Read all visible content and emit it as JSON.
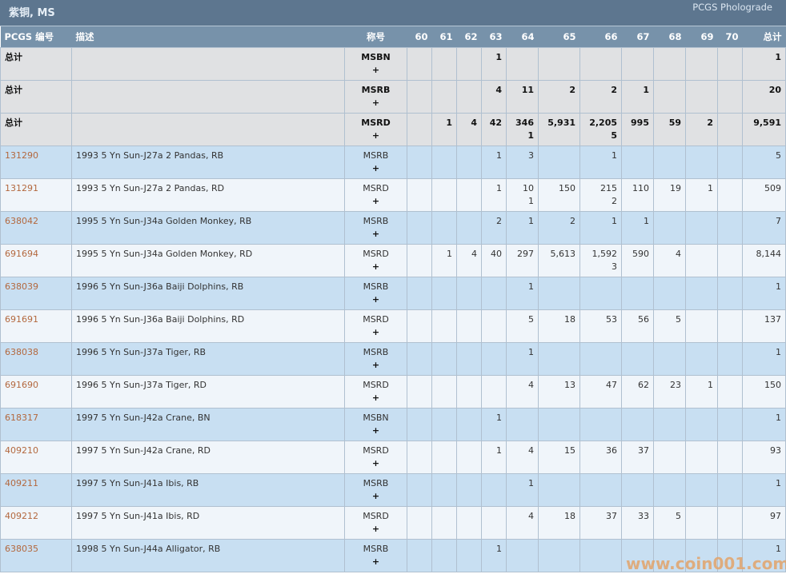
{
  "header": {
    "title": "紫铜, MS",
    "brand": "PCGS Pholograde"
  },
  "columns": {
    "pcgs": "PCGS 编号",
    "desc": "描述",
    "designation": "称号",
    "grades": [
      "60",
      "61",
      "62",
      "63",
      "64",
      "65",
      "66",
      "67",
      "68",
      "69",
      "70"
    ],
    "total": "总计"
  },
  "plus_symbol": "+",
  "totals": [
    {
      "label": "总计",
      "designation": "MSBN",
      "grades": [
        "",
        "",
        "",
        "1",
        "",
        "",
        "",
        "",
        "",
        "",
        ""
      ],
      "plus": [
        "",
        "",
        "",
        "",
        "",
        "",
        "",
        "",
        "",
        "",
        ""
      ],
      "total": "1"
    },
    {
      "label": "总计",
      "designation": "MSRB",
      "grades": [
        "",
        "",
        "",
        "4",
        "11",
        "2",
        "2",
        "1",
        "",
        "",
        ""
      ],
      "plus": [
        "",
        "",
        "",
        "",
        "",
        "",
        "",
        "",
        "",
        "",
        ""
      ],
      "total": "20"
    },
    {
      "label": "总计",
      "designation": "MSRD",
      "grades": [
        "",
        "1",
        "4",
        "42",
        "346",
        "5,931",
        "2,205",
        "995",
        "59",
        "2",
        ""
      ],
      "plus": [
        "",
        "",
        "",
        "",
        "1",
        "",
        "5",
        "",
        "",
        "",
        ""
      ],
      "total": "9,591"
    }
  ],
  "rows": [
    {
      "pcgs": "131290",
      "desc": "1993 5 Yn Sun-J27a 2 Pandas, RB",
      "designation": "MSRB",
      "grades": [
        "",
        "",
        "",
        "1",
        "3",
        "",
        "1",
        "",
        "",
        "",
        ""
      ],
      "plus": [
        "",
        "",
        "",
        "",
        "",
        "",
        "",
        "",
        "",
        "",
        ""
      ],
      "total": "5"
    },
    {
      "pcgs": "131291",
      "desc": "1993 5 Yn Sun-J27a 2 Pandas, RD",
      "designation": "MSRD",
      "grades": [
        "",
        "",
        "",
        "1",
        "10",
        "150",
        "215",
        "110",
        "19",
        "1",
        ""
      ],
      "plus": [
        "",
        "",
        "",
        "",
        "1",
        "",
        "2",
        "",
        "",
        "",
        ""
      ],
      "total": "509"
    },
    {
      "pcgs": "638042",
      "desc": "1995 5 Yn Sun-J34a Golden Monkey, RB",
      "designation": "MSRB",
      "grades": [
        "",
        "",
        "",
        "2",
        "1",
        "2",
        "1",
        "1",
        "",
        "",
        ""
      ],
      "plus": [
        "",
        "",
        "",
        "",
        "",
        "",
        "",
        "",
        "",
        "",
        ""
      ],
      "total": "7"
    },
    {
      "pcgs": "691694",
      "desc": "1995 5 Yn Sun-J34a Golden Monkey, RD",
      "designation": "MSRD",
      "grades": [
        "",
        "1",
        "4",
        "40",
        "297",
        "5,613",
        "1,592",
        "590",
        "4",
        "",
        ""
      ],
      "plus": [
        "",
        "",
        "",
        "",
        "",
        "",
        "3",
        "",
        "",
        "",
        ""
      ],
      "total": "8,144"
    },
    {
      "pcgs": "638039",
      "desc": "1996 5 Yn Sun-J36a Baiji Dolphins, RB",
      "designation": "MSRB",
      "grades": [
        "",
        "",
        "",
        "",
        "1",
        "",
        "",
        "",
        "",
        "",
        ""
      ],
      "plus": [
        "",
        "",
        "",
        "",
        "",
        "",
        "",
        "",
        "",
        "",
        ""
      ],
      "total": "1"
    },
    {
      "pcgs": "691691",
      "desc": "1996 5 Yn Sun-J36a Baiji Dolphins, RD",
      "designation": "MSRD",
      "grades": [
        "",
        "",
        "",
        "",
        "5",
        "18",
        "53",
        "56",
        "5",
        "",
        ""
      ],
      "plus": [
        "",
        "",
        "",
        "",
        "",
        "",
        "",
        "",
        "",
        "",
        ""
      ],
      "total": "137"
    },
    {
      "pcgs": "638038",
      "desc": "1996 5 Yn Sun-J37a Tiger, RB",
      "designation": "MSRB",
      "grades": [
        "",
        "",
        "",
        "",
        "1",
        "",
        "",
        "",
        "",
        "",
        ""
      ],
      "plus": [
        "",
        "",
        "",
        "",
        "",
        "",
        "",
        "",
        "",
        "",
        ""
      ],
      "total": "1"
    },
    {
      "pcgs": "691690",
      "desc": "1996 5 Yn Sun-J37a Tiger, RD",
      "designation": "MSRD",
      "grades": [
        "",
        "",
        "",
        "",
        "4",
        "13",
        "47",
        "62",
        "23",
        "1",
        ""
      ],
      "plus": [
        "",
        "",
        "",
        "",
        "",
        "",
        "",
        "",
        "",
        "",
        ""
      ],
      "total": "150"
    },
    {
      "pcgs": "618317",
      "desc": "1997 5 Yn Sun-J42a Crane, BN",
      "designation": "MSBN",
      "grades": [
        "",
        "",
        "",
        "1",
        "",
        "",
        "",
        "",
        "",
        "",
        ""
      ],
      "plus": [
        "",
        "",
        "",
        "",
        "",
        "",
        "",
        "",
        "",
        "",
        ""
      ],
      "total": "1"
    },
    {
      "pcgs": "409210",
      "desc": "1997 5 Yn Sun-J42a Crane, RD",
      "designation": "MSRD",
      "grades": [
        "",
        "",
        "",
        "1",
        "4",
        "15",
        "36",
        "37",
        "",
        "",
        ""
      ],
      "plus": [
        "",
        "",
        "",
        "",
        "",
        "",
        "",
        "",
        "",
        "",
        ""
      ],
      "total": "93"
    },
    {
      "pcgs": "409211",
      "desc": "1997 5 Yn Sun-J41a Ibis, RB",
      "designation": "MSRB",
      "grades": [
        "",
        "",
        "",
        "",
        "1",
        "",
        "",
        "",
        "",
        "",
        ""
      ],
      "plus": [
        "",
        "",
        "",
        "",
        "",
        "",
        "",
        "",
        "",
        "",
        ""
      ],
      "total": "1"
    },
    {
      "pcgs": "409212",
      "desc": "1997 5 Yn Sun-J41a Ibis, RD",
      "designation": "MSRD",
      "grades": [
        "",
        "",
        "",
        "",
        "4",
        "18",
        "37",
        "33",
        "5",
        "",
        ""
      ],
      "plus": [
        "",
        "",
        "",
        "",
        "",
        "",
        "",
        "",
        "",
        "",
        ""
      ],
      "total": "97"
    },
    {
      "pcgs": "638035",
      "desc": "1998 5 Yn Sun-J44a Alligator, RB",
      "designation": "MSRB",
      "grades": [
        "",
        "",
        "",
        "1",
        "",
        "",
        "",
        "",
        "",
        "",
        ""
      ],
      "plus": [
        "",
        "",
        "",
        "",
        "",
        "",
        "",
        "",
        "",
        "",
        ""
      ],
      "total": "1"
    }
  ],
  "watermark": "www.coin001.com"
}
